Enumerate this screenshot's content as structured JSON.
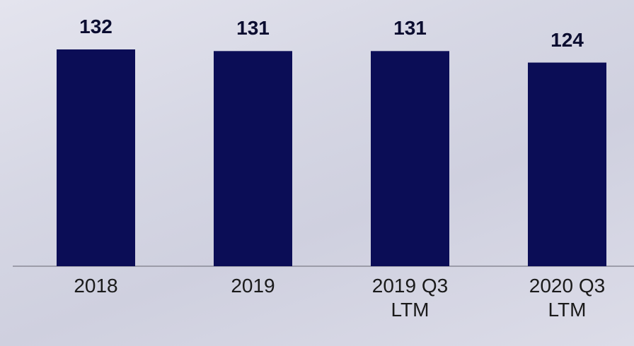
{
  "chart_data": {
    "type": "bar",
    "categories": [
      "2018",
      "2019",
      "2019 Q3 LTM",
      "2020 Q3 LTM"
    ],
    "values": [
      132,
      131,
      131,
      124
    ],
    "color": "#0b0d56",
    "ylim": [
      0,
      132
    ]
  }
}
